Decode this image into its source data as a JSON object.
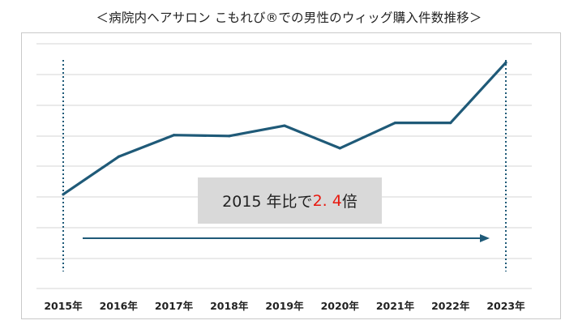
{
  "title": "＜病院内ヘアサロン こもれび®での男性のウィッグ購入件数推移＞",
  "annotation": {
    "prefix": "2015 年比で",
    "highlight": "2. 4",
    "suffix": "倍"
  },
  "colors": {
    "line": "#1f5a78",
    "arrow": "#1f5a78",
    "grid": "#d4d4d4",
    "annotation_bg": "#d9d9d9",
    "highlight": "#e8190f"
  },
  "chart_data": {
    "type": "line",
    "title": "＜病院内ヘアサロン こもれび®での男性のウィッグ購入件数推移＞",
    "categories": [
      "2015年",
      "2016年",
      "2017年",
      "2018年",
      "2019年",
      "2020年",
      "2021年",
      "2022年",
      "2023年"
    ],
    "series": [
      {
        "values": [
          1.0,
          1.4,
          1.63,
          1.62,
          1.73,
          1.49,
          1.76,
          1.76,
          2.4
        ]
      }
    ],
    "ylim": [
      0.0,
      2.6
    ],
    "grid": true,
    "legend": "none",
    "y_axis_labels": "none",
    "highlighted_categories": [
      "2015年",
      "2023年"
    ]
  }
}
